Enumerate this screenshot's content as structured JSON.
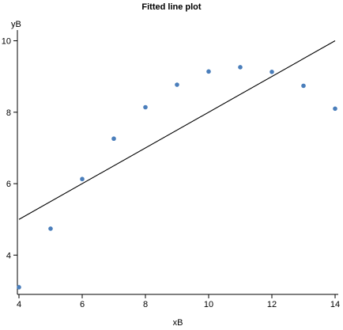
{
  "chart_data": {
    "type": "scatter",
    "title": "Fitted line plot",
    "xlabel": "xB",
    "ylabel": "yB",
    "xlim": [
      3.95,
      14.1
    ],
    "ylim": [
      2.9,
      10.3
    ],
    "x_ticks": [
      4,
      6,
      8,
      10,
      12,
      14
    ],
    "y_ticks": [
      4,
      6,
      8,
      10
    ],
    "grid": false,
    "colors": {
      "points": "#4a7ebb",
      "line": "#000000",
      "axis": "#000000"
    },
    "series": [
      {
        "type": "scatter",
        "x": [
          4,
          5,
          6,
          7,
          8,
          9,
          10,
          11,
          12,
          13,
          14
        ],
        "y": [
          3.1,
          4.74,
          6.13,
          7.26,
          8.14,
          8.77,
          9.14,
          9.26,
          9.13,
          8.74,
          8.1
        ]
      },
      {
        "type": "line",
        "x": [
          4,
          14
        ],
        "y": [
          5.0,
          10.0
        ]
      }
    ]
  }
}
